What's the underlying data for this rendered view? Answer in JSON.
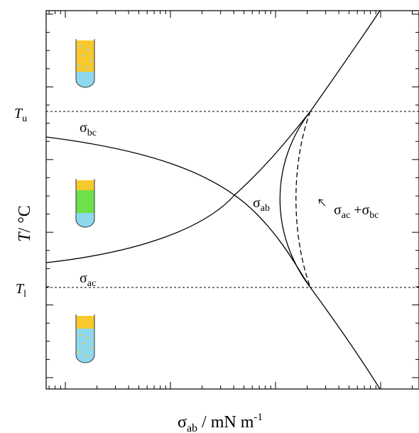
{
  "axes": {
    "x_label": {
      "base": "σ",
      "sub": "ab",
      "rest": " / mN m",
      "sup": "-1"
    },
    "y_label": {
      "italic": "T",
      "rest": "/ °C"
    }
  },
  "levels": [
    {
      "base": "T",
      "sub": "u"
    },
    {
      "base": "T",
      "sub": "l"
    }
  ],
  "curves": [
    {
      "base": "σ",
      "sub": "bc"
    },
    {
      "base": "σ",
      "sub": "ac"
    },
    {
      "base": "σ",
      "sub": "ab"
    },
    {
      "base": "σ",
      "sub": "ac",
      "plus": " +σ",
      "sub2": "bc"
    }
  ]
}
